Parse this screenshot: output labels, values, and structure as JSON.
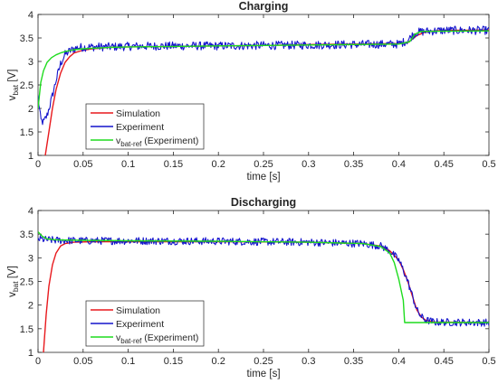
{
  "chart_data": [
    {
      "type": "line",
      "title": "Charging",
      "xlabel": "time [s]",
      "ylabel": "v",
      "ylabel_sub": "bat",
      "ylabel_unit": " [V]",
      "xlim": [
        0,
        0.5
      ],
      "ylim": [
        1,
        4
      ],
      "xticks": [
        "0",
        "0.05",
        "0.1",
        "0.15",
        "0.2",
        "0.25",
        "0.3",
        "0.35",
        "0.4",
        "0.45",
        "0.5"
      ],
      "yticks": [
        "1",
        "1.5",
        "2",
        "2.5",
        "3",
        "3.5",
        "4"
      ],
      "legend_position": "lower-left",
      "grid": false,
      "legend": [
        {
          "label": "Simulation",
          "sub": "",
          "suffix": "",
          "color": "#e8191d"
        },
        {
          "label": "Experiment",
          "sub": "",
          "suffix": "",
          "color": "#1414cc"
        },
        {
          "label": "v",
          "sub": "bat-ref",
          "suffix": " (Experiment)",
          "color": "#1edc1e"
        }
      ],
      "series": [
        {
          "name": "Simulation",
          "color": "#e8191d",
          "x": [
            0.008,
            0.012,
            0.016,
            0.02,
            0.025,
            0.03,
            0.035,
            0.04,
            0.05,
            0.06,
            0.08,
            0.1,
            0.15,
            0.2,
            0.25,
            0.3,
            0.35,
            0.4,
            0.41,
            0.42,
            0.43,
            0.44,
            0.45,
            0.5
          ],
          "y": [
            1.0,
            1.5,
            2.0,
            2.4,
            2.75,
            2.98,
            3.1,
            3.18,
            3.24,
            3.27,
            3.3,
            3.31,
            3.32,
            3.33,
            3.34,
            3.36,
            3.37,
            3.38,
            3.4,
            3.55,
            3.63,
            3.65,
            3.66,
            3.67
          ]
        },
        {
          "name": "Experiment",
          "color": "#1414cc",
          "x": [
            0,
            0.003,
            0.006,
            0.01,
            0.015,
            0.02,
            0.025,
            0.03,
            0.035,
            0.04,
            0.045,
            0.05,
            0.06,
            0.08,
            0.1,
            0.15,
            0.2,
            0.25,
            0.3,
            0.35,
            0.4,
            0.41,
            0.415,
            0.42,
            0.43,
            0.45,
            0.5
          ],
          "y": [
            2.25,
            1.75,
            1.7,
            1.85,
            2.2,
            2.6,
            2.95,
            3.15,
            3.22,
            3.27,
            3.3,
            3.3,
            3.31,
            3.31,
            3.32,
            3.33,
            3.33,
            3.34,
            3.35,
            3.36,
            3.37,
            3.45,
            3.55,
            3.62,
            3.64,
            3.66,
            3.66
          ],
          "noise": 0.09
        },
        {
          "name": "v bat-ref (Experiment)",
          "color": "#1edc1e",
          "x": [
            0,
            0.003,
            0.006,
            0.01,
            0.015,
            0.02,
            0.025,
            0.03,
            0.04,
            0.05,
            0.06,
            0.08,
            0.1,
            0.15,
            0.2,
            0.25,
            0.3,
            0.35,
            0.4,
            0.412,
            0.418,
            0.425,
            0.5
          ],
          "y": [
            2.0,
            2.55,
            2.8,
            2.98,
            3.08,
            3.14,
            3.18,
            3.21,
            3.25,
            3.27,
            3.28,
            3.3,
            3.31,
            3.32,
            3.33,
            3.34,
            3.35,
            3.36,
            3.37,
            3.42,
            3.58,
            3.64,
            3.65
          ]
        }
      ]
    },
    {
      "type": "line",
      "title": "Discharging",
      "xlabel": "time [s]",
      "ylabel": "v",
      "ylabel_sub": "bat",
      "ylabel_unit": " [V]",
      "xlim": [
        0,
        0.5
      ],
      "ylim": [
        1,
        4
      ],
      "xticks": [
        "0",
        "0.05",
        "0.1",
        "0.15",
        "0.2",
        "0.25",
        "0.3",
        "0.35",
        "0.4",
        "0.45",
        "0.5"
      ],
      "yticks": [
        "1",
        "1.5",
        "2",
        "2.5",
        "3",
        "3.5",
        "4"
      ],
      "legend_position": "lower-left",
      "grid": false,
      "legend": [
        {
          "label": "Simulation",
          "sub": "",
          "suffix": "",
          "color": "#e8191d"
        },
        {
          "label": "Experiment",
          "sub": "",
          "suffix": "",
          "color": "#1414cc"
        },
        {
          "label": "v",
          "sub": "bat-ref",
          "suffix": " (Experiment)",
          "color": "#1edc1e"
        }
      ],
      "series": [
        {
          "name": "Simulation",
          "color": "#e8191d",
          "x": [
            0.006,
            0.009,
            0.012,
            0.016,
            0.02,
            0.025,
            0.03,
            0.04,
            0.06,
            0.1,
            0.2,
            0.3,
            0.36,
            0.38,
            0.39,
            0.4,
            0.405,
            0.41,
            0.415,
            0.42,
            0.425,
            0.43,
            0.44,
            0.5
          ],
          "y": [
            1.0,
            1.8,
            2.4,
            2.85,
            3.1,
            3.25,
            3.3,
            3.33,
            3.34,
            3.34,
            3.34,
            3.33,
            3.3,
            3.25,
            3.15,
            2.95,
            2.75,
            2.5,
            2.2,
            1.9,
            1.75,
            1.68,
            1.64,
            1.63
          ]
        },
        {
          "name": "Experiment",
          "color": "#1414cc",
          "x": [
            0,
            0.01,
            0.02,
            0.05,
            0.1,
            0.2,
            0.3,
            0.36,
            0.38,
            0.39,
            0.4,
            0.405,
            0.41,
            0.415,
            0.42,
            0.425,
            0.43,
            0.44,
            0.5
          ],
          "y": [
            3.4,
            3.38,
            3.37,
            3.36,
            3.36,
            3.35,
            3.33,
            3.3,
            3.25,
            3.15,
            2.95,
            2.75,
            2.5,
            2.2,
            1.9,
            1.75,
            1.68,
            1.64,
            1.63
          ],
          "noise": 0.08
        },
        {
          "name": "v bat-ref (Experiment)",
          "color": "#1edc1e",
          "x": [
            0,
            0.005,
            0.01,
            0.02,
            0.05,
            0.1,
            0.2,
            0.3,
            0.36,
            0.38,
            0.39,
            0.395,
            0.4,
            0.405,
            0.4065,
            0.5
          ],
          "y": [
            3.55,
            3.45,
            3.4,
            3.38,
            3.37,
            3.36,
            3.35,
            3.33,
            3.3,
            3.24,
            3.1,
            2.9,
            2.55,
            2.1,
            1.63,
            1.63
          ]
        }
      ]
    }
  ]
}
